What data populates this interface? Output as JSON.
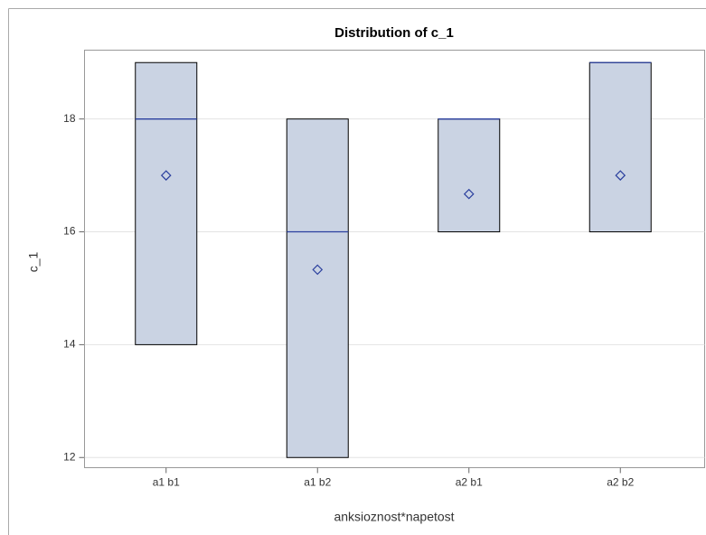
{
  "chart_data": {
    "type": "box",
    "title": "Distribution of c_1",
    "x_label": "anksioznost*napetost",
    "y_label": "c_1",
    "categories": [
      "a1 b1",
      "a1 b2",
      "a2 b1",
      "a2 b2"
    ],
    "min": [
      14,
      12,
      16,
      16
    ],
    "q1": [
      14,
      12,
      16,
      16
    ],
    "median": [
      18,
      16,
      18,
      19
    ],
    "q3": [
      19,
      18,
      18,
      19
    ],
    "max": [
      19,
      18,
      18,
      19
    ],
    "mean": [
      17,
      15.33,
      16.67,
      17
    ],
    "box_color": "#cad3e3",
    "median_color": "#2a3f9e",
    "mean_color": "#2a3f9e",
    "ylim": [
      11.82,
      19.22
    ],
    "yticks": [
      12,
      14,
      16,
      18
    ],
    "grid": true
  }
}
